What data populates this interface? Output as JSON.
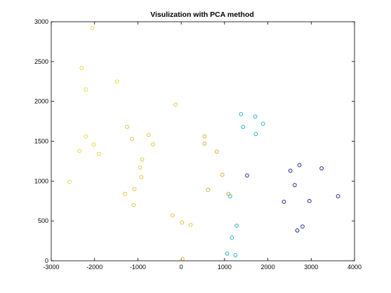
{
  "chart_data": {
    "type": "scatter",
    "title": "Visulization with PCA method",
    "xlabel": "",
    "ylabel": "",
    "xlim": [
      -3000,
      4000
    ],
    "ylim": [
      0,
      3000
    ],
    "xticks": [
      -3000,
      -2000,
      -1000,
      0,
      1000,
      2000,
      3000,
      4000
    ],
    "yticks": [
      0,
      500,
      1000,
      1500,
      2000,
      2500,
      3000
    ],
    "grid": false,
    "legend": "none",
    "marker": "circle-open",
    "series": [
      {
        "color": "#e9d94a",
        "points": [
          [
            -2050,
            2920
          ],
          [
            -2300,
            2420
          ],
          [
            -2200,
            2150
          ],
          [
            -1480,
            2250
          ],
          [
            -2200,
            1560
          ],
          [
            -2020,
            1460
          ],
          [
            -2350,
            1380
          ],
          [
            -1900,
            1340
          ],
          [
            -2580,
            990
          ]
        ]
      },
      {
        "color": "#e8c245",
        "points": [
          [
            -130,
            1960
          ],
          [
            -1250,
            1680
          ],
          [
            -1140,
            1530
          ],
          [
            -750,
            1580
          ],
          [
            -650,
            1460
          ],
          [
            -900,
            1270
          ],
          [
            -950,
            1170
          ],
          [
            -920,
            1050
          ],
          [
            -1300,
            840
          ],
          [
            -1080,
            900
          ],
          [
            -1100,
            700
          ],
          [
            -200,
            570
          ],
          [
            20,
            480
          ],
          [
            220,
            450
          ],
          [
            30,
            20
          ]
        ]
      },
      {
        "color": "#d9ad3f",
        "points": [
          [
            540,
            1560
          ],
          [
            540,
            1470
          ],
          [
            820,
            1370
          ],
          [
            950,
            1080
          ],
          [
            620,
            890
          ],
          [
            1090,
            840
          ]
        ]
      },
      {
        "color": "#2bb5c2",
        "points": [
          [
            1380,
            1840
          ],
          [
            1710,
            1810
          ],
          [
            1430,
            1680
          ],
          [
            1890,
            1720
          ],
          [
            1720,
            1590
          ],
          [
            1130,
            810
          ],
          [
            1280,
            440
          ],
          [
            1170,
            290
          ],
          [
            1060,
            90
          ],
          [
            1250,
            70
          ]
        ]
      },
      {
        "color": "#1f2a8f",
        "points": [
          [
            1520,
            1070
          ],
          [
            2520,
            1130
          ],
          [
            2730,
            1200
          ],
          [
            3240,
            1160
          ],
          [
            2620,
            950
          ],
          [
            2370,
            740
          ],
          [
            2960,
            750
          ],
          [
            3620,
            810
          ],
          [
            2800,
            430
          ],
          [
            2680,
            380
          ]
        ]
      }
    ]
  }
}
